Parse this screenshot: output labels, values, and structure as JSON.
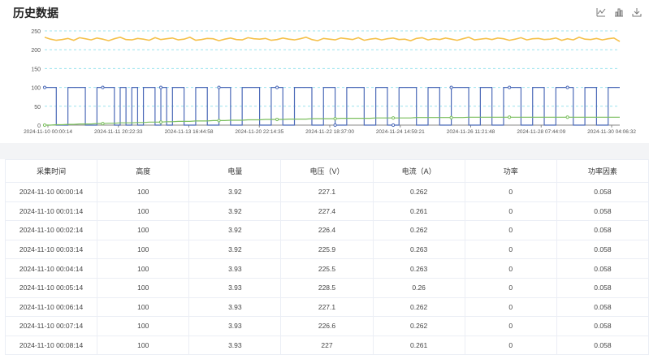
{
  "header": {
    "title": "历史数据"
  },
  "toolbar": {
    "icons": [
      "line-chart-icon",
      "bar-chart-icon",
      "download-icon"
    ]
  },
  "chart_data": {
    "type": "line",
    "y_ticks": [
      0,
      50,
      100,
      150,
      200,
      250
    ],
    "ylim": [
      0,
      250
    ],
    "x_tick_labels": [
      "2024-11-10 00:00:14",
      "2024-11-11 20:22:33",
      "2024-11-13 16:44:58",
      "2024-11-20 22:14:35",
      "2024-11-22 18:37:00",
      "2024-11-24 14:59:21",
      "2024-11-26 11:21:48",
      "2024-11-28 07:44:09",
      "2024-11-30 04:06:32"
    ],
    "series": [
      {
        "color": "#f5c04a",
        "values": [
          233,
          228,
          225,
          227,
          230,
          225,
          232,
          229,
          226,
          231,
          228,
          224,
          229,
          233,
          227,
          226,
          230,
          228,
          225,
          232,
          227,
          229,
          231,
          226,
          228,
          233,
          225,
          227,
          230,
          229,
          224,
          228,
          231,
          227,
          226,
          232,
          229,
          228,
          230,
          225,
          227,
          231,
          228,
          226,
          229,
          233,
          227,
          224,
          230,
          228,
          226,
          231,
          229,
          227,
          232,
          225,
          228,
          230,
          226,
          229,
          231,
          227,
          228,
          224,
          230,
          232,
          226,
          229,
          227,
          231,
          228,
          225,
          229,
          233,
          226,
          228,
          230,
          227,
          231,
          229,
          225,
          228,
          232,
          226,
          229,
          230,
          227,
          228,
          231,
          225,
          229,
          226,
          233,
          228,
          227,
          230,
          226,
          229,
          231,
          222
        ]
      },
      {
        "color": "#4c6ab8",
        "values": [
          100,
          100,
          0,
          0,
          100,
          100,
          100,
          0,
          0,
          100,
          100,
          100,
          0,
          100,
          0,
          100,
          0,
          100,
          100,
          0,
          100,
          0,
          100,
          100,
          0,
          0,
          100,
          100,
          0,
          0,
          100,
          100,
          0,
          0,
          100,
          100,
          100,
          0,
          0,
          100,
          100,
          0,
          0,
          100,
          100,
          100,
          0,
          0,
          100,
          100,
          0,
          0,
          100,
          100,
          100,
          0,
          0,
          100,
          100,
          0,
          0,
          100,
          100,
          100,
          0,
          0,
          100,
          100,
          0,
          0,
          100,
          100,
          100,
          0,
          0,
          100,
          100,
          0,
          0,
          100,
          100,
          100,
          0,
          0,
          100,
          100,
          0,
          0,
          100,
          100,
          100,
          0,
          0,
          100,
          100,
          0,
          0,
          100,
          100,
          100
        ]
      },
      {
        "color": "#7bbf5e",
        "values": [
          0,
          0,
          1,
          1,
          2,
          2,
          3,
          3,
          3,
          4,
          4,
          5,
          5,
          6,
          6,
          6,
          7,
          7,
          8,
          8,
          8,
          9,
          9,
          10,
          10,
          10,
          11,
          11,
          11,
          12,
          12,
          12,
          13,
          13,
          13,
          14,
          14,
          14,
          15,
          15,
          15,
          15,
          16,
          16,
          16,
          16,
          17,
          17,
          17,
          17,
          17,
          18,
          18,
          18,
          18,
          18,
          18,
          19,
          19,
          19,
          19,
          19,
          19,
          19,
          20,
          20,
          20,
          20,
          20,
          20,
          20,
          20,
          20,
          21,
          21,
          21,
          21,
          21,
          21,
          21,
          21,
          21,
          21,
          21,
          21,
          21,
          21,
          21,
          21,
          21,
          21,
          21,
          21,
          21,
          21,
          21,
          21,
          21,
          21,
          21
        ]
      }
    ]
  },
  "table": {
    "columns": [
      "采集时间",
      "高度",
      "电量",
      "电压（V）",
      "电流（A）",
      "功率",
      "功率因素"
    ],
    "rows": [
      [
        "2024-11-10 00:00:14",
        "100",
        "3.92",
        "227.1",
        "0.262",
        "0",
        "0.058"
      ],
      [
        "2024-11-10 00:01:14",
        "100",
        "3.92",
        "227.4",
        "0.261",
        "0",
        "0.058"
      ],
      [
        "2024-11-10 00:02:14",
        "100",
        "3.92",
        "226.4",
        "0.262",
        "0",
        "0.058"
      ],
      [
        "2024-11-10 00:03:14",
        "100",
        "3.92",
        "225.9",
        "0.263",
        "0",
        "0.058"
      ],
      [
        "2024-11-10 00:04:14",
        "100",
        "3.93",
        "225.5",
        "0.263",
        "0",
        "0.058"
      ],
      [
        "2024-11-10 00:05:14",
        "100",
        "3.93",
        "228.5",
        "0.26",
        "0",
        "0.058"
      ],
      [
        "2024-11-10 00:06:14",
        "100",
        "3.93",
        "227.1",
        "0.262",
        "0",
        "0.058"
      ],
      [
        "2024-11-10 00:07:14",
        "100",
        "3.93",
        "226.6",
        "0.262",
        "0",
        "0.058"
      ],
      [
        "2024-11-10 00:08:14",
        "100",
        "3.93",
        "227",
        "0.261",
        "0",
        "0.058"
      ]
    ]
  }
}
